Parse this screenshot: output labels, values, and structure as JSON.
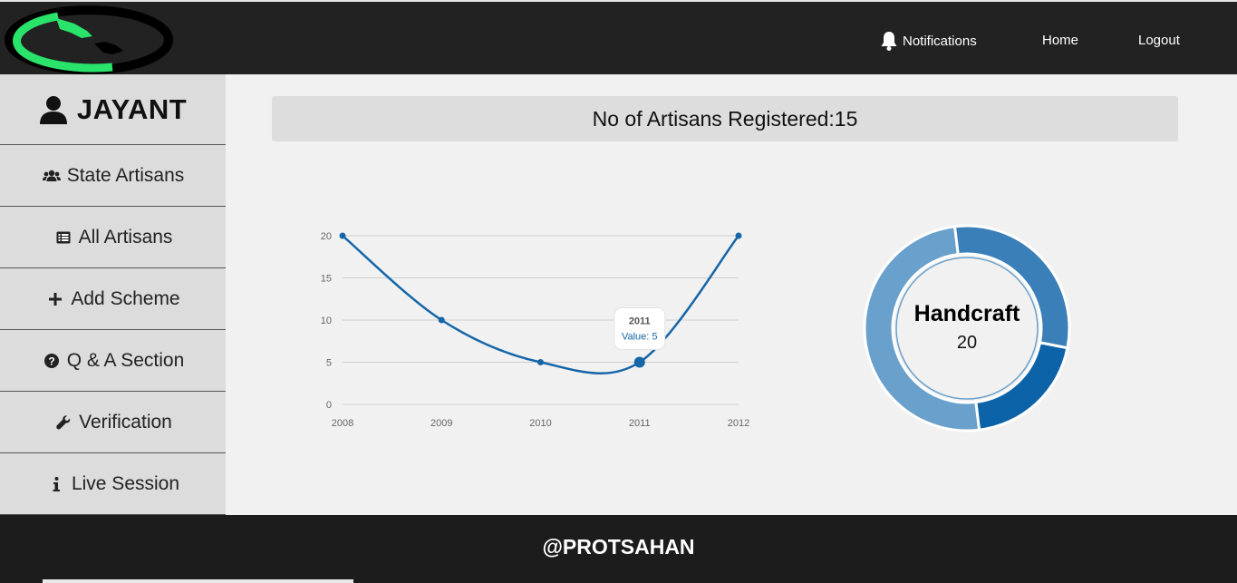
{
  "header": {
    "nav": {
      "notifications": "Notifications",
      "home": "Home",
      "logout": "Logout"
    }
  },
  "sidebar": {
    "user_name": "JAYANT",
    "items": [
      {
        "label": "State Artisans",
        "icon": "users-icon"
      },
      {
        "label": "All Artisans",
        "icon": "list-icon"
      },
      {
        "label": "Add Scheme",
        "icon": "plus-icon"
      },
      {
        "label": "Q & A Section",
        "icon": "question-circle-icon"
      },
      {
        "label": "Verification",
        "icon": "wrench-icon"
      },
      {
        "label": "Live Session",
        "icon": "info-icon"
      }
    ]
  },
  "main": {
    "banner": "No of Artisans Registered:15"
  },
  "chart_data": [
    {
      "type": "line",
      "x": [
        "2008",
        "2009",
        "2010",
        "2011",
        "2012"
      ],
      "values": [
        20,
        10,
        5,
        5,
        20
      ],
      "ylim": [
        0,
        20
      ],
      "yticks": [
        "0",
        "5",
        "10",
        "15",
        "20"
      ],
      "tooltip": {
        "title": "2011",
        "text": "Value: 5"
      },
      "color": "#1565a8"
    },
    {
      "type": "pie",
      "center_label": "Handcraft",
      "center_value": "20",
      "values": [
        30,
        20,
        50
      ],
      "colors": [
        "#3a7fb8",
        "#0d63a8",
        "#6aa0cc"
      ]
    }
  ],
  "footer": {
    "text": "@PROTSAHAN"
  },
  "colors": {
    "header_bg": "#222222",
    "sidebar_bg": "#dcdcdc",
    "logo_green": "#29e36a"
  }
}
